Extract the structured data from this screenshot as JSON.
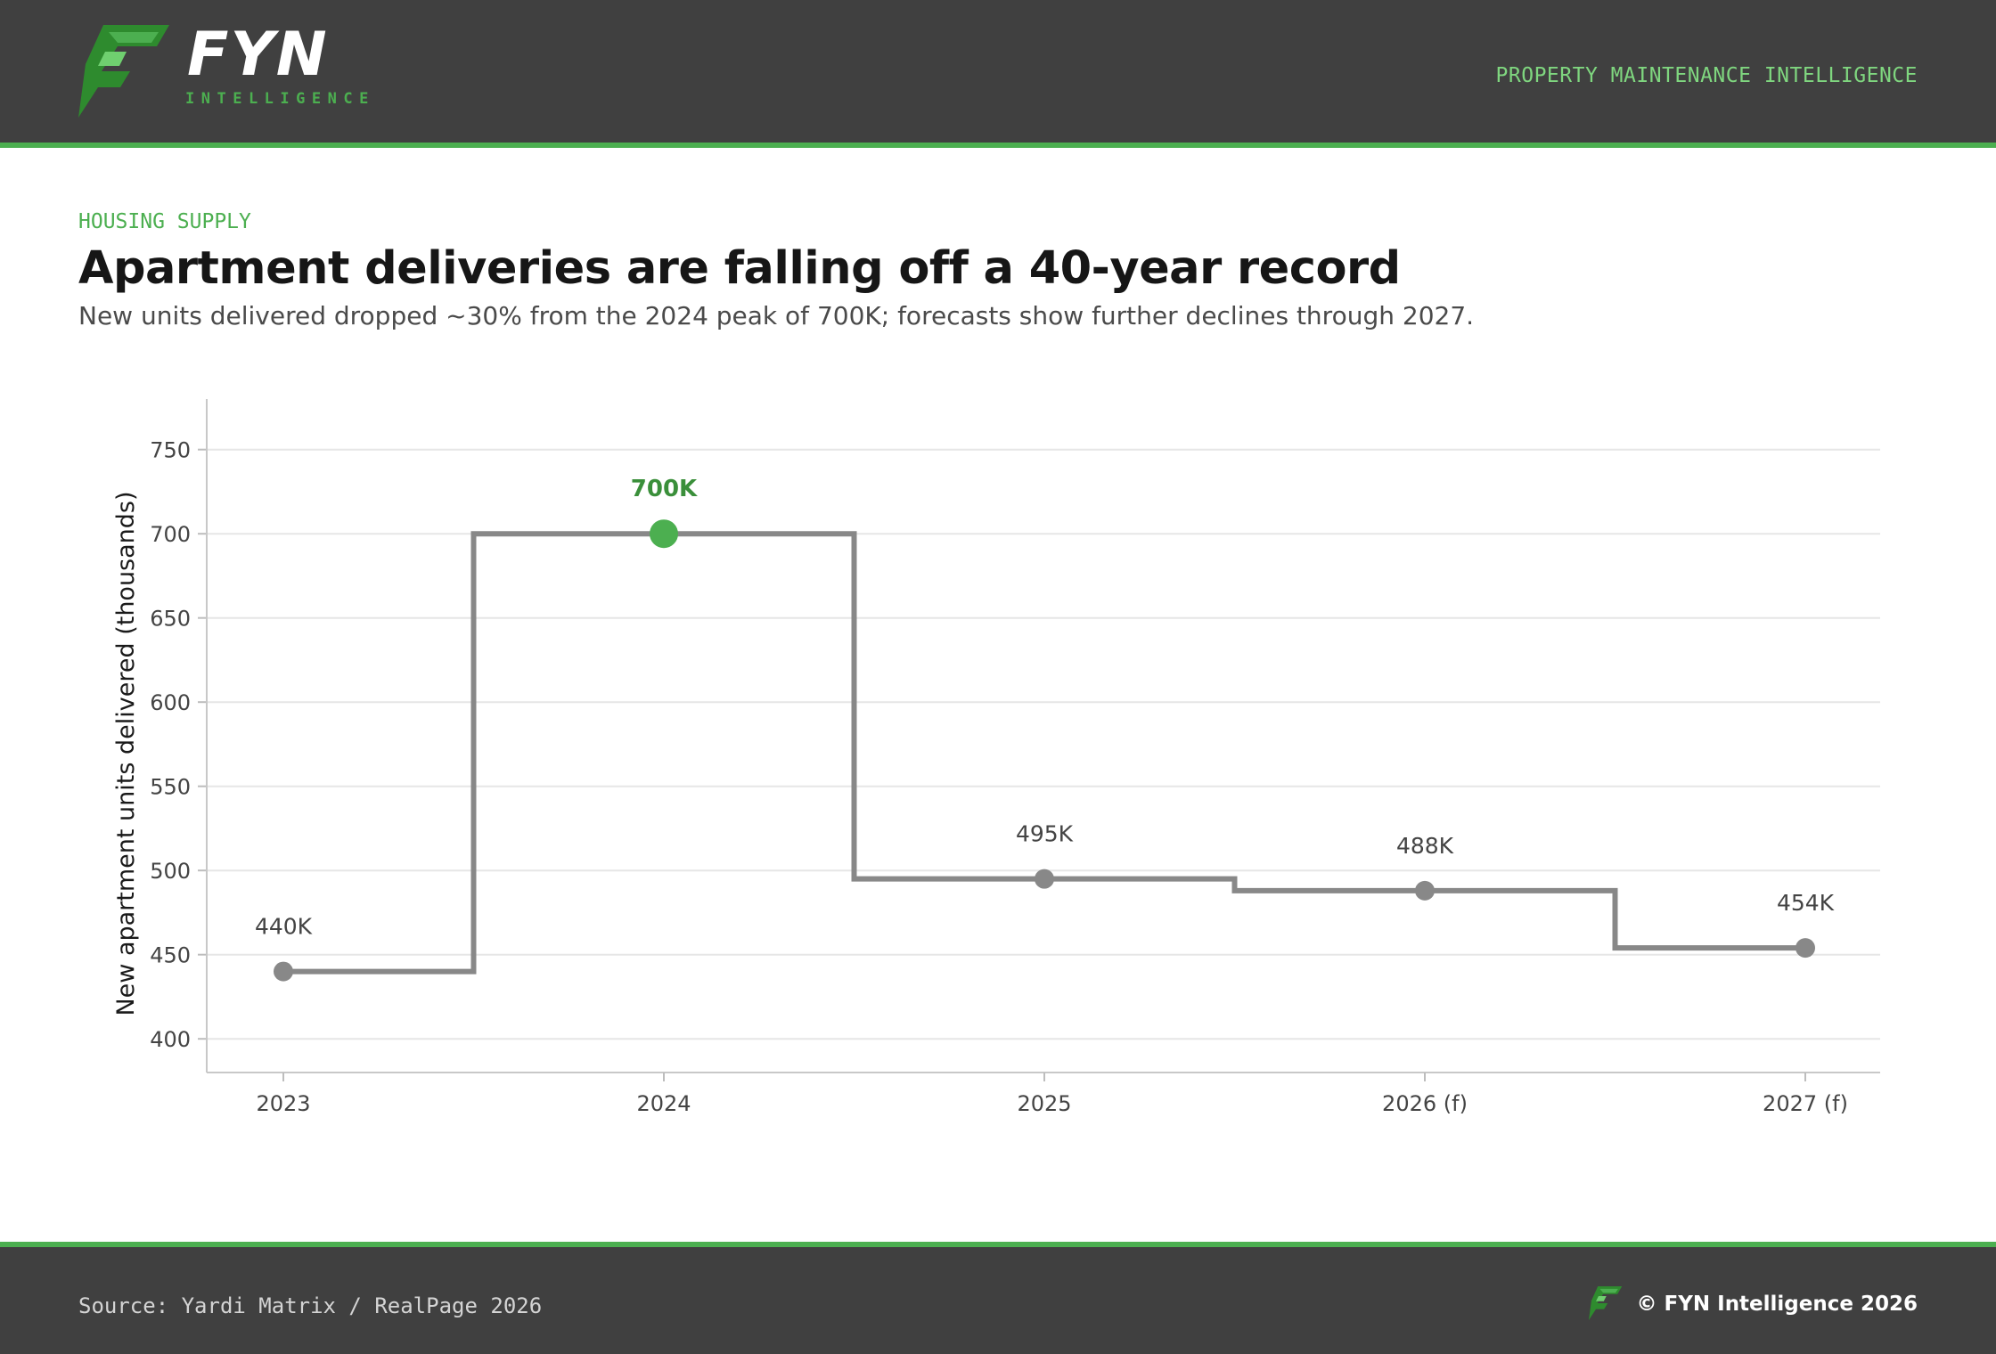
{
  "brand": {
    "name": "FYN",
    "tagline": "INTELLIGENCE",
    "header_tag": "PROPERTY MAINTENANCE INTELLIGENCE",
    "accent": "#4caf50",
    "accent_light": "#7fd67f",
    "dark_bg": "#404040"
  },
  "eyebrow": "HOUSING SUPPLY",
  "title": "Apartment deliveries are falling off a 40-year record",
  "subtitle": "New units delivered dropped ~30% from the 2024 peak of 700K; forecasts show further declines through 2027.",
  "chart_data": {
    "type": "line",
    "step": "mid",
    "categories": [
      "2023",
      "2024",
      "2025",
      "2026 (f)",
      "2027 (f)"
    ],
    "values": [
      440,
      700,
      495,
      488,
      454
    ],
    "labels": [
      "440K",
      "700K",
      "495K",
      "488K",
      "454K"
    ],
    "highlight_index": 1,
    "ylabel": "New apartment units delivered (thousands)",
    "ylim": [
      380,
      780
    ],
    "yticks": [
      400,
      450,
      500,
      550,
      600,
      650,
      700,
      750
    ],
    "grid": true,
    "line_color": "#888888",
    "highlight_color": "#4caf50",
    "label_color": "#444444",
    "highlight_label_color": "#3a8f3a"
  },
  "footer": {
    "source": "Source: Yardi Matrix / RealPage 2026",
    "copyright": "© FYN Intelligence 2026"
  }
}
